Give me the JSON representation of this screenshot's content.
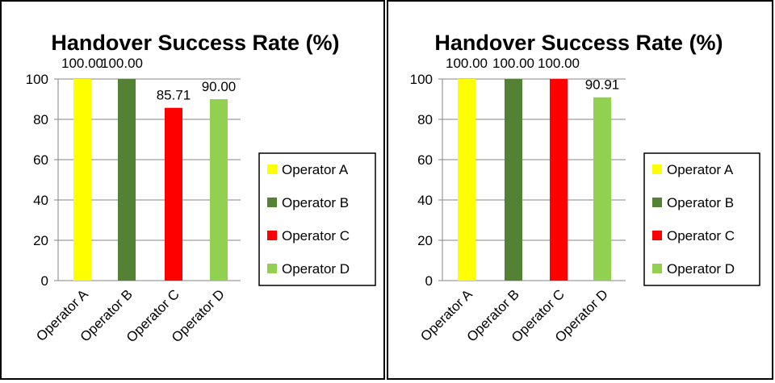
{
  "chart_data": [
    {
      "type": "bar",
      "title": "Handover Success Rate (%)",
      "xlabel": "",
      "ylabel": "",
      "categories": [
        "Operator A",
        "Operator B",
        "Operator C",
        "Operator D"
      ],
      "values": [
        100.0,
        100.0,
        85.71,
        90.0
      ],
      "data_labels": [
        "100.00",
        "100.00",
        "85.71",
        "90.00"
      ],
      "colors": [
        "#ffff00",
        "#548235",
        "#ff0000",
        "#92d050"
      ],
      "ylim": [
        0,
        100
      ],
      "yticks": [
        "0",
        "20",
        "40",
        "60",
        "80",
        "100"
      ],
      "grid": true,
      "legend": {
        "position": "right",
        "entries": [
          "Operator A",
          "Operator B",
          "Operator C",
          "Operator D"
        ]
      }
    },
    {
      "type": "bar",
      "title": "Handover Success Rate (%)",
      "xlabel": "",
      "ylabel": "",
      "categories": [
        "Operator A",
        "Operator B",
        "Operator C",
        "Operator D"
      ],
      "values": [
        100.0,
        100.0,
        100.0,
        90.91
      ],
      "data_labels": [
        "100.00",
        "100.00",
        "100.00",
        "90.91"
      ],
      "colors": [
        "#ffff00",
        "#548235",
        "#ff0000",
        "#92d050"
      ],
      "ylim": [
        0,
        100
      ],
      "yticks": [
        "0",
        "20",
        "40",
        "60",
        "80",
        "100"
      ],
      "grid": true,
      "legend": {
        "position": "right",
        "entries": [
          "Operator A",
          "Operator B",
          "Operator C",
          "Operator D"
        ]
      }
    }
  ]
}
